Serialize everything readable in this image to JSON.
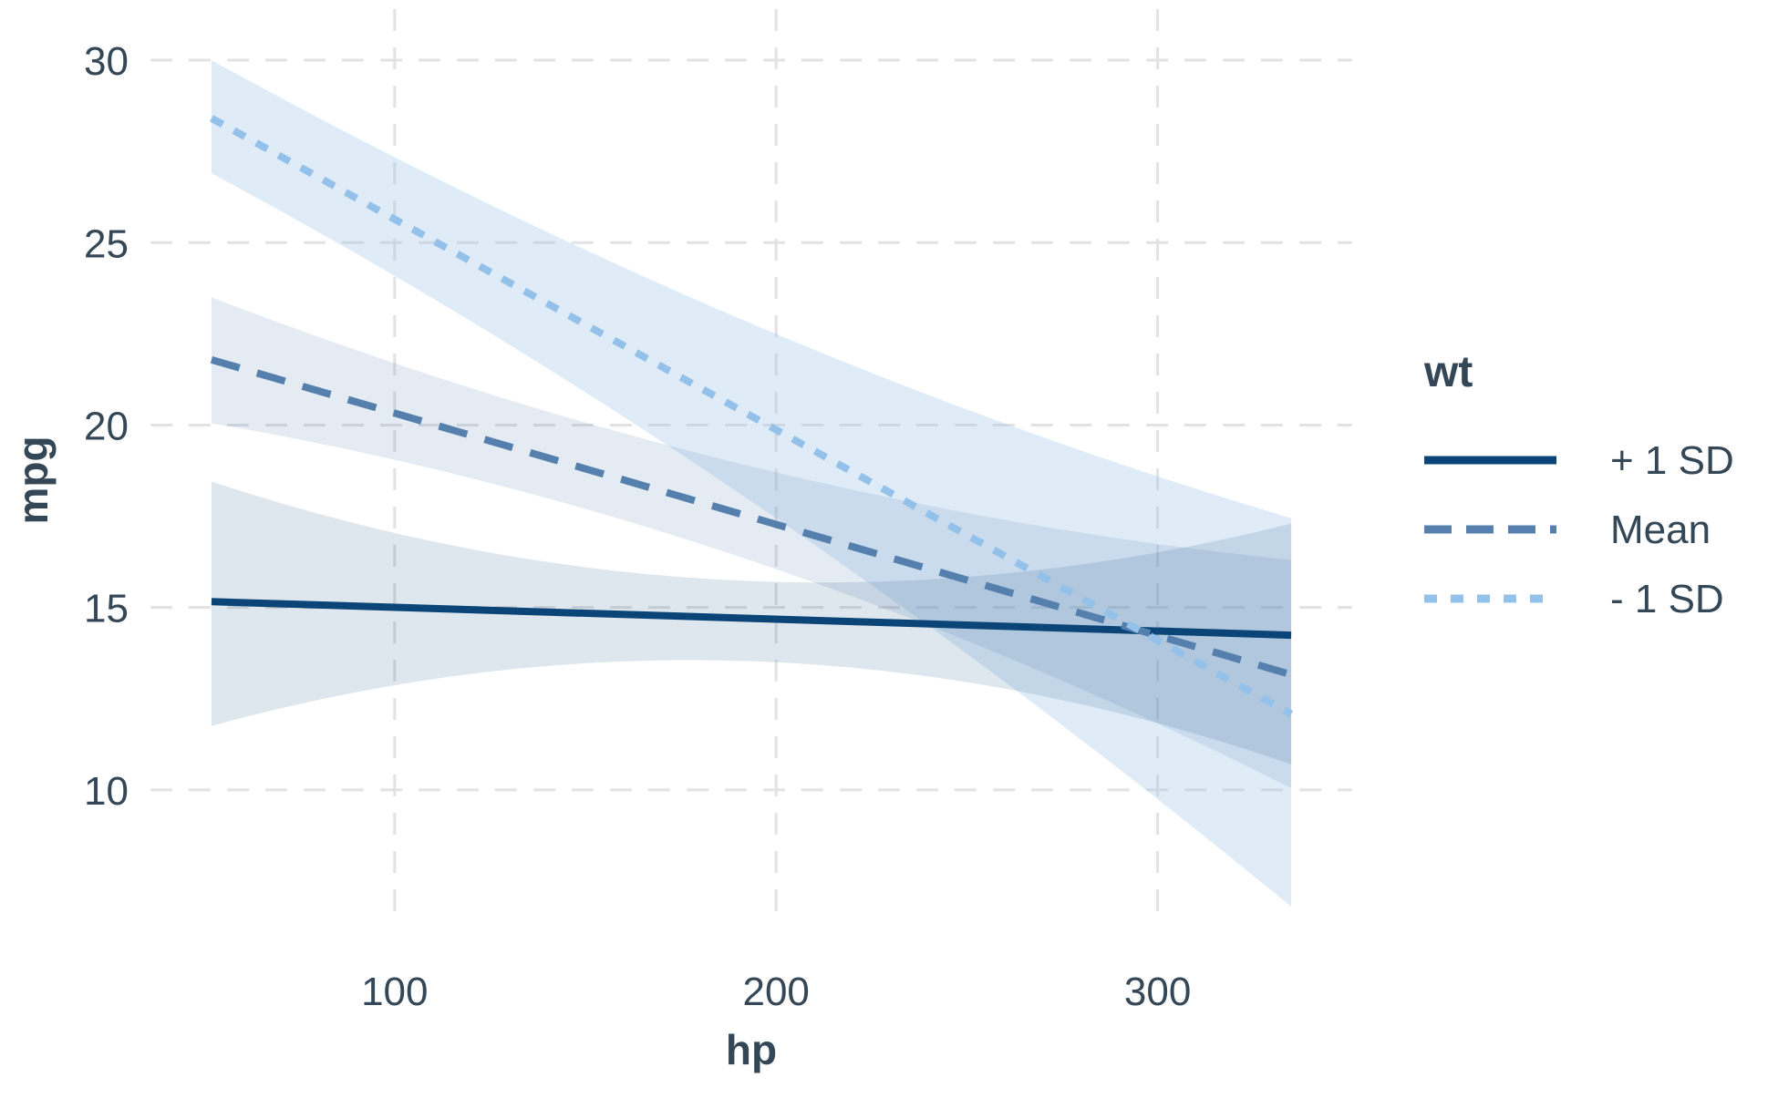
{
  "chart_data": {
    "type": "line",
    "title": "",
    "xlabel": "hp",
    "ylabel": "mpg",
    "x_ticks": [
      100,
      200,
      300
    ],
    "y_ticks": [
      30,
      25,
      20,
      15,
      10
    ],
    "xlim": [
      36,
      351
    ],
    "ylim": [
      6.55,
      31.4
    ],
    "x_data_range": [
      52,
      335
    ],
    "grid": {
      "visible": true,
      "color": "#E2E2E2",
      "dash": "24 18"
    },
    "legend": {
      "title": "wt",
      "position": "right"
    },
    "series": [
      {
        "name": "+ 1 SD",
        "line_style": "solid",
        "color": "#0B4577",
        "points": [
          [
            52,
            15.16
          ],
          [
            335,
            14.24
          ]
        ],
        "ribbon": {
          "fill": "#0A4678",
          "opacity": 0.13,
          "stations": [
            [
              52,
              11.75,
              18.45
            ],
            [
              200,
              13.5,
              15.7
            ],
            [
              335,
              10.7,
              17.3
            ]
          ]
        }
      },
      {
        "name": "Mean",
        "line_style": "dashed",
        "color": "#5580AD",
        "points": [
          [
            52,
            21.79
          ],
          [
            335,
            13.16
          ]
        ],
        "ribbon": {
          "fill": "#5580AD",
          "opacity": 0.16,
          "stations": [
            [
              52,
              20.05,
              23.5
            ],
            [
              200,
              16.05,
              18.7
            ],
            [
              335,
              10.05,
              16.3
            ]
          ]
        }
      },
      {
        "name": "- 1 SD",
        "line_style": "dotted",
        "color": "#94C1E9",
        "points": [
          [
            52,
            28.41
          ],
          [
            335,
            12.08
          ]
        ],
        "ribbon": {
          "fill": "#94C1E9",
          "opacity": 0.3,
          "stations": [
            [
              52,
              26.9,
              30.0
            ],
            [
              150,
              20.9,
              24.8
            ],
            [
              335,
              6.8,
              17.45
            ]
          ]
        }
      }
    ]
  }
}
